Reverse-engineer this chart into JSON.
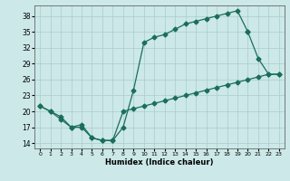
{
  "xlabel": "Humidex (Indice chaleur)",
  "bg_color": "#cce8e8",
  "line_color": "#1a6e5a",
  "grid_color": "#aacccc",
  "xlim": [
    -0.5,
    23.5
  ],
  "ylim": [
    13,
    40
  ],
  "yticks": [
    14,
    17,
    20,
    23,
    26,
    29,
    32,
    35,
    38
  ],
  "xticks": [
    0,
    1,
    2,
    3,
    4,
    5,
    6,
    7,
    8,
    9,
    10,
    11,
    12,
    13,
    14,
    15,
    16,
    17,
    18,
    19,
    20,
    21,
    22,
    23
  ],
  "curve1_x": [
    0,
    1,
    2,
    3,
    4,
    5,
    6,
    7,
    8,
    9,
    10,
    11,
    12,
    13,
    14,
    15,
    16,
    17,
    18,
    19,
    20
  ],
  "curve1_y": [
    21,
    20,
    19,
    17,
    17.5,
    15,
    14.5,
    14.5,
    17,
    24,
    33,
    34,
    34.5,
    35.5,
    36.5,
    37,
    37.5,
    38,
    38.5,
    39,
    35
  ],
  "curve2_x": [
    0,
    1,
    2,
    3,
    4,
    5,
    6,
    7,
    8,
    9,
    10,
    11,
    12,
    13,
    14,
    15,
    16,
    17,
    18,
    19,
    20,
    21,
    22,
    23
  ],
  "curve2_y": [
    21,
    20,
    18.5,
    17,
    17,
    15,
    14.5,
    14.5,
    20,
    20.5,
    21,
    21.5,
    22,
    22.5,
    23,
    23.5,
    24,
    24.5,
    25,
    25.5,
    26,
    26.5,
    27,
    27
  ],
  "curve3_x": [
    20,
    21,
    22,
    23
  ],
  "curve3_y": [
    35,
    30,
    27,
    27
  ]
}
